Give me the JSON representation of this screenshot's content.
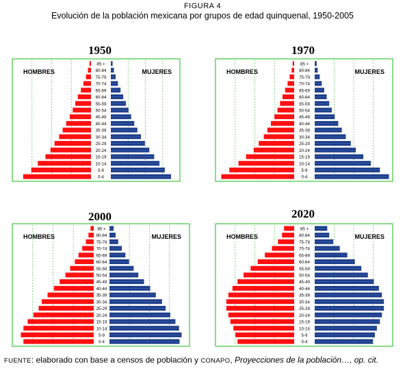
{
  "figure": {
    "label": "FIGURA 4",
    "title": "Evolución de la población mexicana por grupos de edad quinquenal, 1950-2005"
  },
  "legend": {
    "men_label": "HOMBRES",
    "women_label": "MUJERES"
  },
  "colors": {
    "men": "#ff1010",
    "women": "#1e3f8c",
    "frame": "#3cc43c",
    "gridline": "#6cc46c"
  },
  "source": {
    "prefix_sc": "FUENTE",
    "prefix_rest": ": elaborado con base a censos de población y ",
    "org_sc": "CONAPO",
    "sep": ", ",
    "italic": "Proyecciones de la población…, op. cit."
  },
  "chart_data": [
    {
      "type": "bar",
      "title": "1950",
      "categories": [
        "85 +",
        "80-84",
        "75-79",
        "70-74",
        "65-69",
        "60-64",
        "55-59",
        "50-54",
        "45-49",
        "40-44",
        "35-39",
        "30-34",
        "25-29",
        "20-24",
        "15-19",
        "10-14",
        "5-9",
        "0-4"
      ],
      "series": [
        {
          "name": "HOMBRES",
          "values": [
            0.3,
            0.6,
            1,
            1.5,
            2,
            2.6,
            3.1,
            3.6,
            4.2,
            4.9,
            5.6,
            6.3,
            7.2,
            8,
            9,
            10.5,
            11.8,
            13.4
          ]
        },
        {
          "name": "MUJERES",
          "values": [
            0.4,
            0.7,
            1.1,
            1.6,
            2.2,
            2.8,
            3.4,
            4,
            4.6,
            5.3,
            6,
            6.8,
            7.7,
            8.7,
            9.8,
            11,
            12.2,
            13.6
          ]
        }
      ]
    },
    {
      "type": "bar",
      "title": "1970",
      "categories": [
        "85 +",
        "80-84",
        "75-79",
        "70-74",
        "65-69",
        "60-64",
        "55-59",
        "50-54",
        "45-49",
        "40-44",
        "35-39",
        "30-34",
        "25-29",
        "20-24",
        "15-19",
        "10-14",
        "5-9",
        "0-4"
      ],
      "series": [
        {
          "name": "HOMBRES",
          "values": [
            0.3,
            0.5,
            0.9,
            1.3,
            1.8,
            2.3,
            2.8,
            3.3,
            3.9,
            4.6,
            5.3,
            6,
            7,
            8,
            9.5,
            11,
            12.8,
            14.4
          ]
        },
        {
          "name": "MUJERES",
          "values": [
            0.4,
            0.6,
            1,
            1.4,
            1.9,
            2.4,
            2.9,
            3.4,
            4,
            4.7,
            5.4,
            6.2,
            7.2,
            8.2,
            9.7,
            11.2,
            13,
            14.8
          ]
        }
      ]
    },
    {
      "type": "bar",
      "title": "2000",
      "categories": [
        "85 +",
        "80-84",
        "75-79",
        "70-74",
        "65-69",
        "60-64",
        "55-59",
        "50-54",
        "45-49",
        "40-44",
        "35-39",
        "30-34",
        "25-29",
        "20-24",
        "15-19",
        "10-14",
        "5-9",
        "0-4"
      ],
      "series": [
        {
          "name": "HOMBRES",
          "values": [
            0.6,
            1,
            1.5,
            2.2,
            2.9,
            3.6,
            4.5,
            5.4,
            6.5,
            7.6,
            8.8,
            9.9,
            10.5,
            11.5,
            12.6,
            13.4,
            13.9,
            13.4
          ]
        },
        {
          "name": "MUJERES",
          "values": [
            0.8,
            1.2,
            1.7,
            2.4,
            3.1,
            3.8,
            4.7,
            5.6,
            6.7,
            7.9,
            9,
            10.2,
            10.9,
            11.8,
            12.8,
            13.5,
            14,
            13.6
          ]
        }
      ]
    },
    {
      "type": "bar",
      "title": "2020",
      "categories": [
        "85 +",
        "80-84",
        "75-79",
        "70-74",
        "65-69",
        "60-64",
        "55-59",
        "50-54",
        "45-49",
        "40-44",
        "35-39",
        "30-34",
        "25-29",
        "20-24",
        "15-19",
        "10-14",
        "5-9",
        "0-4"
      ],
      "series": [
        {
          "name": "HOMBRES",
          "values": [
            2,
            2.4,
            3.2,
            4.4,
            5.8,
            7.2,
            8.6,
            10,
            11.2,
            12.2,
            13,
            13.4,
            13.4,
            13,
            12.6,
            12,
            11.6,
            11.2
          ]
        },
        {
          "name": "MUJERES",
          "values": [
            2.5,
            2.9,
            3.7,
            5,
            6.5,
            8,
            9.3,
            10.6,
            11.8,
            12.8,
            13.4,
            13.8,
            13.8,
            13.4,
            13,
            12.4,
            12,
            11.6
          ]
        }
      ]
    }
  ]
}
